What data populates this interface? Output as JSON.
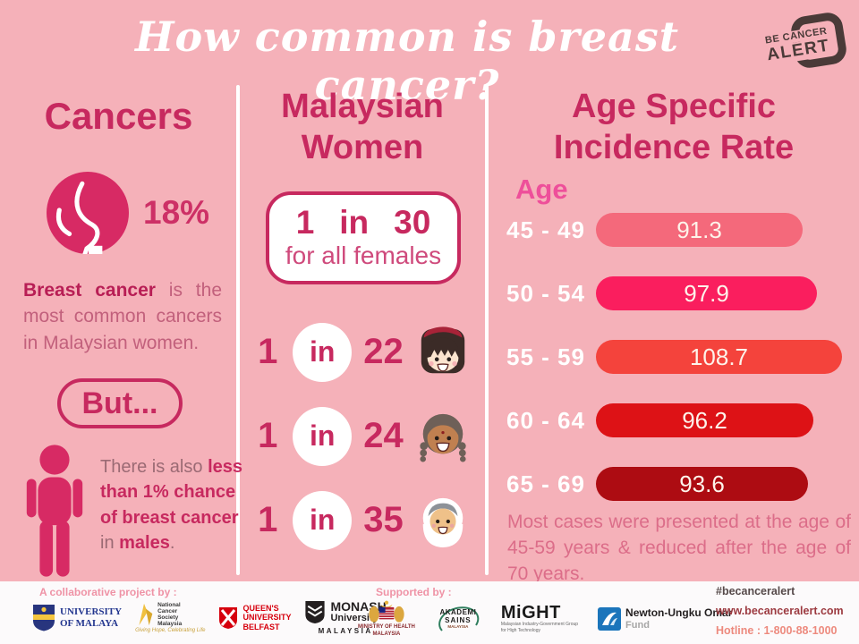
{
  "theme": {
    "background": "#f5b1b9",
    "accent": "#c7295f",
    "hot_pink": "#ee4f9a",
    "white": "#ffffff"
  },
  "header": {
    "title": "How common is breast cancer?",
    "badge_line1": "BE CANCER",
    "badge_line2": "ALERT"
  },
  "left": {
    "heading": "Cancers",
    "stat": "18%",
    "para1_segments": [
      {
        "text": "Breast cancer",
        "bold": true
      },
      {
        "text": " is the most common cancers in Malaysian women.",
        "bold": false
      }
    ],
    "but_label": "But...",
    "para2_segments": [
      {
        "text": "There is also ",
        "bold": false
      },
      {
        "text": "less than 1% chance of breast cancer",
        "bold": true
      },
      {
        "text": " in ",
        "bold": false
      },
      {
        "text": "males",
        "bold": true
      },
      {
        "text": ".",
        "bold": false
      }
    ]
  },
  "middle": {
    "heading_line1": "Malaysian",
    "heading_line2": "Women",
    "box": {
      "parts": [
        "1",
        "in",
        "30"
      ],
      "caption": "for all females"
    },
    "rows": [
      {
        "prefix": "1",
        "mid": "in",
        "value": "22",
        "group": "chinese-girl"
      },
      {
        "prefix": "1",
        "mid": "in",
        "value": "24",
        "group": "indian-girl"
      },
      {
        "prefix": "1",
        "mid": "in",
        "value": "35",
        "group": "malay-girl"
      }
    ]
  },
  "right": {
    "heading_line1": "Age Specific",
    "heading_line2": "Incidence Rate",
    "age_label": "Age",
    "note": "Most cases were presented at the age of 45-59 years & reduced after the age of 70 years."
  },
  "chart_data": {
    "type": "bar",
    "orientation": "horizontal",
    "title": "Age Specific Incidence Rate",
    "ylabel": "Age",
    "xlabel": "",
    "categories": [
      "45 - 49",
      "50 - 54",
      "55 - 59",
      "60 - 64",
      "65 - 69"
    ],
    "values": [
      91.3,
      97.9,
      108.7,
      96.2,
      93.6
    ],
    "colors": [
      "#f4697b",
      "#fa1e5e",
      "#f4433c",
      "#dd1216",
      "#ad0c12"
    ],
    "xlim": [
      0,
      110
    ],
    "grid": false,
    "legend": false
  },
  "footer": {
    "collab_label": "A collaborative project by :",
    "supported_label": "Supported by :",
    "hashtag": "#becanceralert",
    "website": "www.becanceralert.com",
    "hotline": "Hotline : 1-800-88-1000",
    "partners": {
      "um": {
        "line1": "UNIVERSITY",
        "line2": "OF MALAYA"
      },
      "ncsm": {
        "line1": "National",
        "line2": "Cancer",
        "line3": "Society",
        "line4": "Malaysia",
        "tagline": "Giving Hope, Celebrating Life"
      },
      "qub": {
        "line1": "QUEEN'S",
        "line2": "UNIVERSITY",
        "line3": "BELFAST"
      },
      "monash": {
        "line1": "MONASH",
        "line2": "University",
        "line3": "MALAYSIA"
      }
    },
    "supporters": {
      "moh": {
        "line1": "MINISTRY OF HEALTH",
        "line2": "MALAYSIA"
      },
      "asm": {
        "line1": "AKADEMI",
        "line2": "SAINS",
        "line3": "MALAYSIA"
      },
      "might": {
        "name": "MiGHT",
        "sub1": "Malaysian Industry-Government Group",
        "sub2": "for High Technology"
      },
      "newton": {
        "line1": "Newton-Ungku Omar",
        "line2": "Fund"
      }
    }
  }
}
